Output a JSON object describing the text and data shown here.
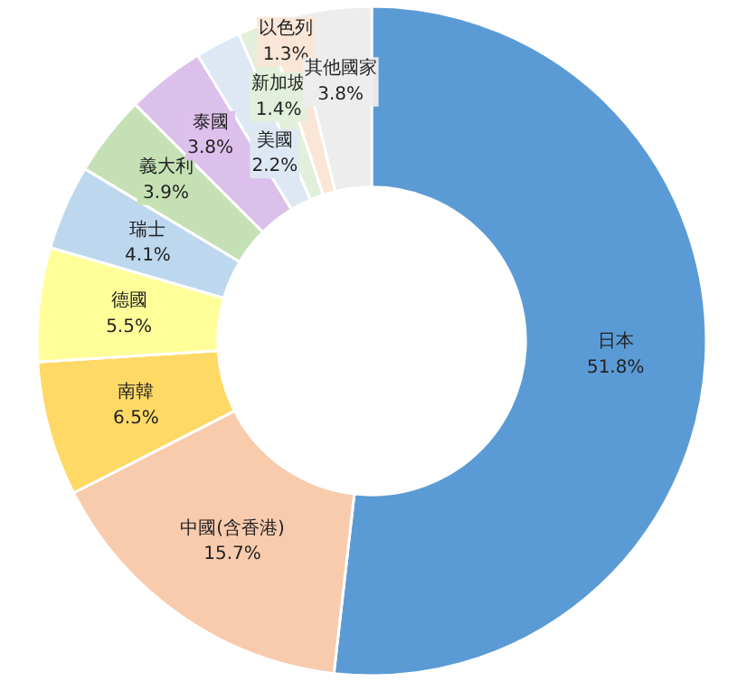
{
  "chart_data": {
    "type": "donut",
    "categories": [
      "日本",
      "中國(含香港)",
      "南韓",
      "德國",
      "瑞士",
      "義大利",
      "泰國",
      "美國",
      "新加坡",
      "以色列",
      "其他國家"
    ],
    "values": [
      51.8,
      15.7,
      6.5,
      5.5,
      4.1,
      3.9,
      3.8,
      2.2,
      1.4,
      1.3,
      3.8
    ],
    "value_labels": [
      "51.8%",
      "15.7%",
      "6.5%",
      "5.5%",
      "4.1%",
      "3.9%",
      "3.8%",
      "2.2%",
      "1.4%",
      "1.3%",
      "3.8%"
    ],
    "colors": [
      "#5b9bd5",
      "#f8cbad",
      "#ffd966",
      "#ffff99",
      "#bdd7ee",
      "#c5e0b4",
      "#dcc0ec",
      "#dde8f4",
      "#e2efda",
      "#fbe5d6",
      "#ededed"
    ]
  }
}
